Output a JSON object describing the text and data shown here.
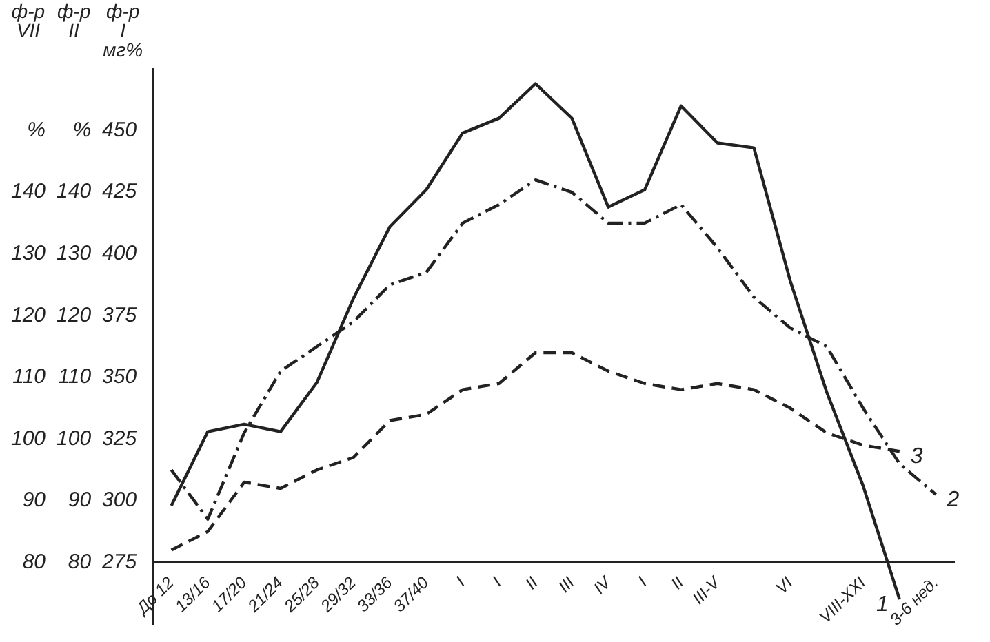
{
  "chart_data": {
    "type": "line",
    "categories": [
      "До 12",
      "13/16",
      "17/20",
      "21/24",
      "25/28",
      "29/32",
      "33/36",
      "37/40",
      "I",
      "I",
      "II",
      "III",
      "IV",
      "I",
      "II",
      "III-V",
      null,
      "VI",
      null,
      "VIII-XXI",
      null,
      "3-6 нед."
    ],
    "series": [
      {
        "name": "1",
        "color": "#222222",
        "axis": "y",
        "line_style": "solid",
        "values": [
          298,
          328,
          331,
          328,
          348,
          382,
          411,
          426,
          449,
          455,
          469,
          455,
          419,
          426,
          460,
          445,
          443,
          389,
          344,
          306,
          260,
          null
        ]
      },
      {
        "name": "2",
        "color": "#222222",
        "axis": "y2",
        "line_style": "dashdot",
        "values": [
          95,
          87,
          101,
          111,
          115,
          119,
          125,
          127,
          135,
          138,
          142,
          140,
          135,
          135,
          138,
          131,
          123,
          118,
          115,
          105,
          96,
          91
        ]
      },
      {
        "name": "3",
        "color": "#222222",
        "axis": "y3",
        "line_style": "dashed",
        "values": [
          82,
          85,
          93,
          92,
          95,
          97,
          103,
          104,
          108,
          109,
          114,
          114,
          111,
          109,
          108,
          109,
          108,
          105,
          101,
          99,
          98,
          null
        ]
      }
    ],
    "ylabel": "ф-р I мг%",
    "y2label": "ф-р II",
    "y3label": "ф-р VII",
    "ylim": [
      250,
      475
    ],
    "yticks": [
      275,
      300,
      325,
      350,
      375,
      400,
      425,
      450
    ],
    "y2lim": [
      70,
      160
    ],
    "y2ticks": [
      80,
      90,
      100,
      110,
      120,
      130,
      140,
      {
        "value": 150,
        "label": "%"
      }
    ],
    "y3lim": [
      70,
      160
    ],
    "y3ticks": [
      80,
      90,
      100,
      110,
      120,
      130,
      140,
      {
        "value": 150,
        "label": "%"
      }
    ],
    "grid": false,
    "legend": false,
    "marker": "none"
  }
}
